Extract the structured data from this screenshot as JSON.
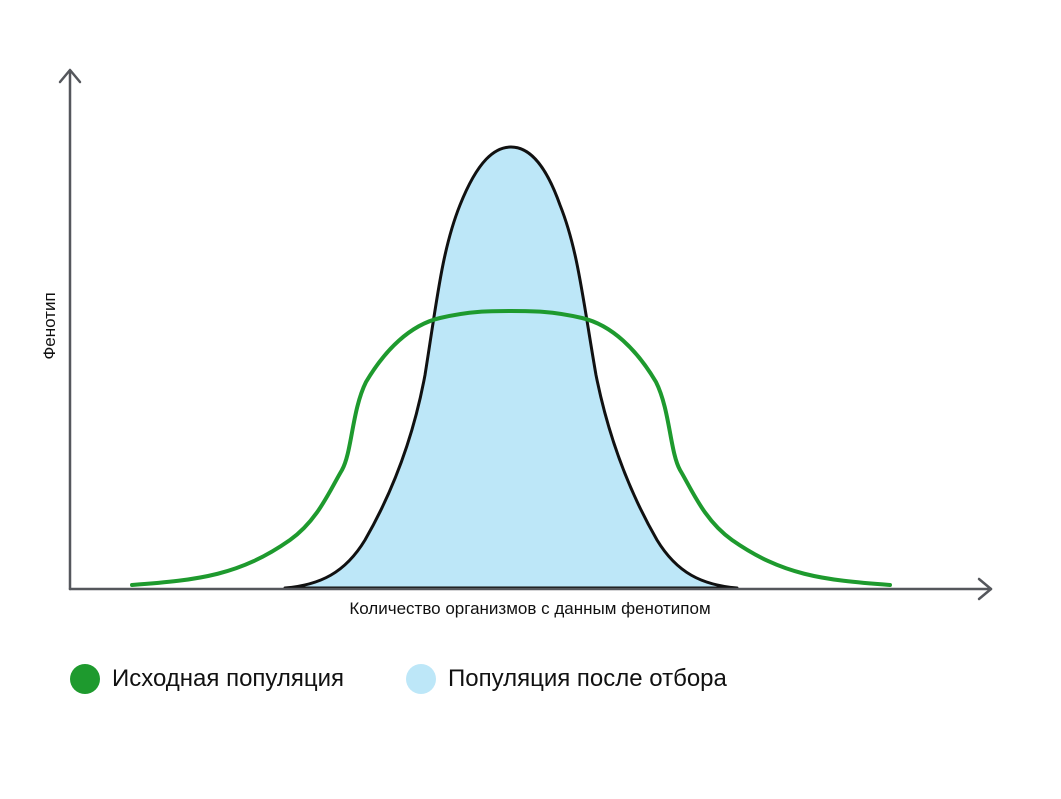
{
  "diagram": {
    "y_axis_label": "Фенотип",
    "x_axis_label": "Количество организмов с данным фенотипом",
    "colors": {
      "axis": "#55575c",
      "original_population": "#1e9a2e",
      "selected_population_fill": "#bde7f8",
      "selected_population_outline": "#111111"
    }
  },
  "legend": {
    "original_population": "Исходная популяция",
    "selected_population": "Популяция после отбора"
  }
}
